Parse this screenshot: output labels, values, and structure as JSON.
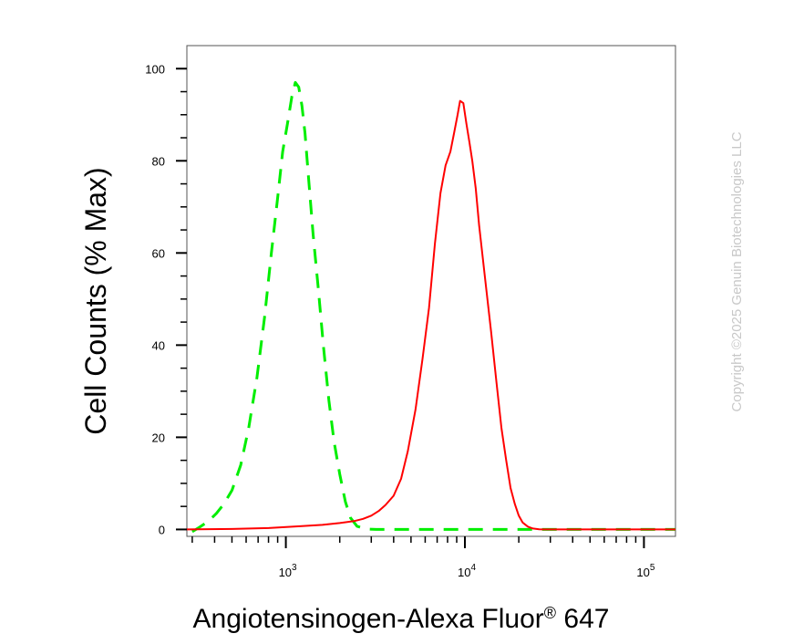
{
  "chart_data": {
    "type": "line",
    "xlabel": "Angiotensinogen-Alexa Fluor",
    "xlabel_superscript": "®",
    "xlabel_suffix": " 647",
    "ylabel": "Cell Counts (% Max)",
    "x_scale": "log",
    "xlim": [
      280,
      150000
    ],
    "ylim": [
      -1.5,
      105
    ],
    "yticks": [
      0,
      20,
      40,
      60,
      80,
      100
    ],
    "yticklabels": [
      "0",
      "20",
      "40",
      "60",
      "80",
      "100"
    ],
    "xticks": [
      1000,
      10000,
      100000
    ],
    "xticklabels": [
      {
        "base": "10",
        "exp": "3"
      },
      {
        "base": "10",
        "exp": "4"
      },
      {
        "base": "10",
        "exp": "5"
      }
    ],
    "grid": false,
    "series": [
      {
        "style": "dashed",
        "color": "#00ee00",
        "x": [
          300,
          330,
          370,
          410,
          450,
          500,
          560,
          620,
          690,
          760,
          830,
          900,
          960,
          1020,
          1080,
          1130,
          1180,
          1230,
          1280,
          1340,
          1420,
          1520,
          1620,
          1740,
          1860,
          2000,
          2150,
          2300,
          2500,
          2800,
          3200,
          4000,
          6000,
          10000,
          20000,
          50000,
          100000,
          150000
        ],
        "y": [
          -0.5,
          0.5,
          1.8,
          3.5,
          5.5,
          8.5,
          14,
          22,
          33,
          46,
          60,
          72,
          82,
          88,
          94,
          97,
          96,
          92,
          86,
          76,
          64,
          52,
          40,
          28,
          19,
          12,
          6,
          2.5,
          0.7,
          0.1,
          0,
          0,
          0,
          0,
          0,
          0,
          0,
          0
        ]
      },
      {
        "style": "solid",
        "color": "#ff0000",
        "x": [
          280,
          500,
          800,
          1200,
          1600,
          2000,
          2400,
          2700,
          3000,
          3300,
          3600,
          4000,
          4400,
          4800,
          5300,
          5800,
          6300,
          6800,
          7300,
          7800,
          8300,
          8700,
          9100,
          9400,
          9800,
          10200,
          10600,
          11000,
          11500,
          12000,
          12500,
          13000,
          14000,
          15000,
          16000,
          17000,
          18000,
          19000,
          20000,
          21000,
          22500,
          24000,
          26000,
          28000,
          30000,
          35000,
          50000,
          80000,
          150000
        ],
        "y": [
          0,
          0.1,
          0.3,
          0.7,
          1,
          1.4,
          1.8,
          2.3,
          3,
          4,
          5.3,
          7.3,
          11,
          17,
          26,
          37,
          48,
          62,
          73,
          79,
          82,
          86,
          90,
          93,
          92.5,
          88,
          84,
          80,
          74,
          66,
          60,
          54,
          43,
          32,
          22,
          15,
          9,
          5.5,
          3,
          1.5,
          0.6,
          0.2,
          0.05,
          0,
          0,
          0,
          0,
          0,
          0
        ]
      }
    ]
  },
  "watermark": "Copyright ©2025 Genuin Biotechnologies LLC"
}
